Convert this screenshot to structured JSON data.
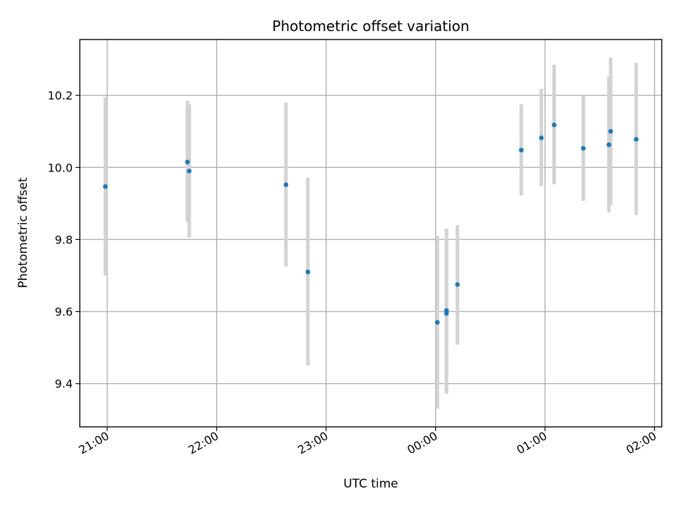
{
  "chart_data": {
    "type": "scatter",
    "title": "Photometric offset variation",
    "xlabel": "UTC time",
    "ylabel": "Photometric offset",
    "x_axis": "time",
    "x_range": [
      "20:45",
      "02:04"
    ],
    "ylim": [
      9.28,
      10.355
    ],
    "xticks": [
      "21:00",
      "22:00",
      "23:00",
      "00:00",
      "01:00",
      "02:00"
    ],
    "yticks": [
      9.4,
      9.6,
      9.8,
      10.0,
      10.2
    ],
    "grid": true,
    "legend": "none",
    "colors": {
      "point": "#1f77b4",
      "errorbar": "#d3d3d3",
      "grid": "#b0b0b0"
    },
    "points": [
      {
        "x": "20:59",
        "y": 9.947,
        "ylow": 9.7,
        "yhigh": 10.195
      },
      {
        "x": "21:44",
        "y": 10.015,
        "ylow": 9.85,
        "yhigh": 10.185
      },
      {
        "x": "21:45",
        "y": 9.99,
        "ylow": 9.805,
        "yhigh": 10.175
      },
      {
        "x": "22:38",
        "y": 9.952,
        "ylow": 9.725,
        "yhigh": 10.18
      },
      {
        "x": "22:50",
        "y": 9.71,
        "ylow": 9.45,
        "yhigh": 9.972
      },
      {
        "x": "00:01",
        "y": 9.57,
        "ylow": 9.33,
        "yhigh": 9.81
      },
      {
        "x": "00:06",
        "y": 9.595,
        "ylow": 9.372,
        "yhigh": 9.825
      },
      {
        "x": "00:06",
        "y": 9.603,
        "ylow": 9.38,
        "yhigh": 9.83
      },
      {
        "x": "00:12",
        "y": 9.675,
        "ylow": 9.508,
        "yhigh": 9.84
      },
      {
        "x": "00:47",
        "y": 10.048,
        "ylow": 9.922,
        "yhigh": 10.175
      },
      {
        "x": "00:58",
        "y": 10.082,
        "ylow": 9.948,
        "yhigh": 10.218
      },
      {
        "x": "01:05",
        "y": 10.118,
        "ylow": 9.953,
        "yhigh": 10.285
      },
      {
        "x": "01:21",
        "y": 10.053,
        "ylow": 9.907,
        "yhigh": 10.198
      },
      {
        "x": "01:35",
        "y": 10.063,
        "ylow": 9.875,
        "yhigh": 10.252
      },
      {
        "x": "01:36",
        "y": 10.1,
        "ylow": 9.895,
        "yhigh": 10.305
      },
      {
        "x": "01:50",
        "y": 10.078,
        "ylow": 9.868,
        "yhigh": 10.29
      }
    ]
  }
}
